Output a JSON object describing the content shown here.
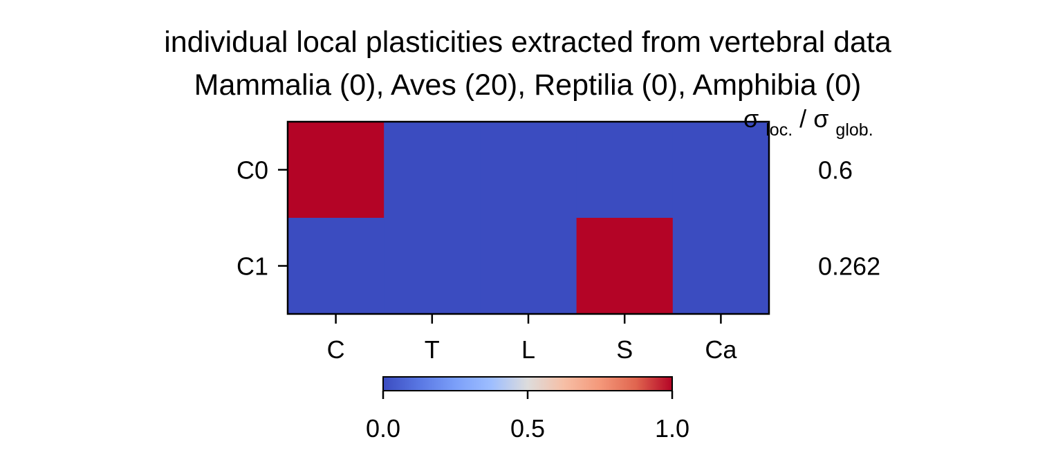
{
  "chart_data": {
    "type": "heatmap",
    "title": "individual local plasticities extracted from vertebral data",
    "subtitle": "Mammalia (0), Aves (20), Reptilia (0), Amphibia (0)",
    "x_categories": [
      "C",
      "T",
      "L",
      "S",
      "Ca"
    ],
    "y_categories": [
      "C0",
      "C1"
    ],
    "values": [
      [
        1,
        0,
        0,
        0,
        0
      ],
      [
        0,
        0,
        0,
        1,
        0
      ]
    ],
    "right_header": {
      "sigma1": "σ",
      "sub1": "loc.",
      "slash": "/",
      "sigma2": "σ",
      "sub2": "glob."
    },
    "right_values": [
      "0.6",
      "0.262"
    ],
    "colorbar": {
      "ticks": [
        "0.0",
        "0.5",
        "1.0"
      ],
      "range": [
        0,
        1
      ],
      "colormap": "coolwarm"
    },
    "colors": {
      "low": "#3b4cc0",
      "high": "#b40426"
    }
  }
}
